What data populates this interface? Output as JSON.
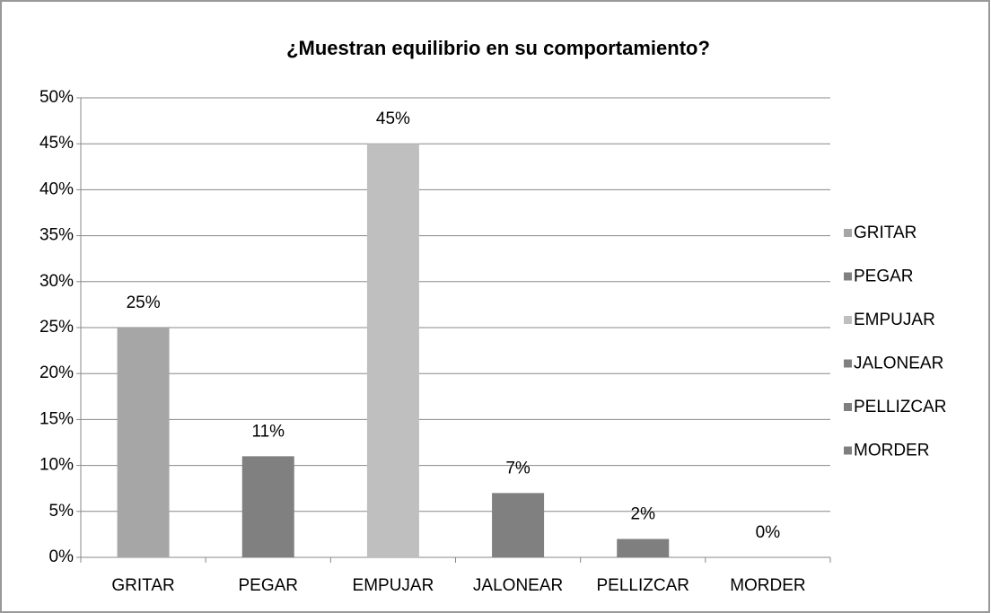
{
  "chart_data": {
    "type": "bar",
    "title": "¿Muestran equilibrio en su comportamiento?",
    "categories": [
      "GRITAR",
      "PEGAR",
      "EMPUJAR",
      "JALONEAR",
      "PELLIZCAR",
      "MORDER"
    ],
    "values": [
      25,
      11,
      45,
      7,
      2,
      0
    ],
    "value_labels": [
      "25%",
      "11%",
      "45%",
      "7%",
      "2%",
      "0%"
    ],
    "colors": [
      "#a6a6a6",
      "#808080",
      "#bfbfbf",
      "#808080",
      "#7f7f7f",
      "#7f7f7f"
    ],
    "ylim": [
      0,
      50
    ],
    "yticks": [
      {
        "value": 0,
        "label": "0%"
      },
      {
        "value": 5,
        "label": "5%"
      },
      {
        "value": 10,
        "label": "10%"
      },
      {
        "value": 15,
        "label": "15%"
      },
      {
        "value": 20,
        "label": "20%"
      },
      {
        "value": 25,
        "label": "25%"
      },
      {
        "value": 30,
        "label": "30%"
      },
      {
        "value": 35,
        "label": "35%"
      },
      {
        "value": 40,
        "label": "40%"
      },
      {
        "value": 45,
        "label": "45%"
      },
      {
        "value": 50,
        "label": "50%"
      }
    ],
    "grid": true,
    "legend": "right"
  }
}
